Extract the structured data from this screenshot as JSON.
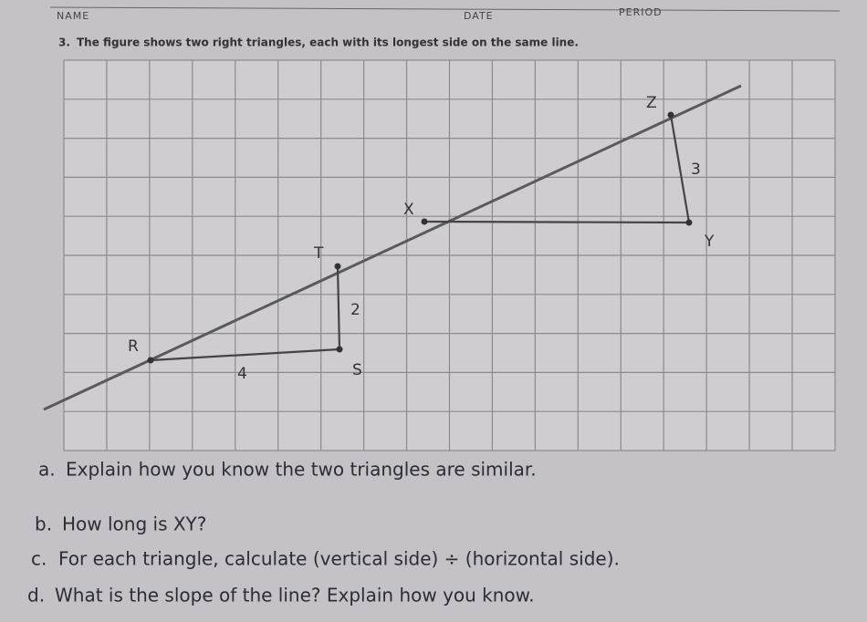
{
  "header": {
    "name": "NAME",
    "date": "DATE",
    "period": "PERIOD"
  },
  "problem": {
    "number": "3.",
    "text": "The figure shows two right triangles, each with its longest side on the same line."
  },
  "figure": {
    "labels": {
      "Z": "Z",
      "side_ZY": 3,
      "X": "X",
      "Y": "Y",
      "T": "T",
      "side_TS": 2,
      "R": "R",
      "side_RS": 4,
      "S": "S"
    }
  },
  "questions": [
    {
      "marker": "a.",
      "text": "Explain how you know the two triangles are similar."
    },
    {
      "marker": "b.",
      "text": "How long is XY?"
    },
    {
      "marker": "c.",
      "text": "For each triangle, calculate (vertical side) ÷ (horizontal side)."
    },
    {
      "marker": "d.",
      "text": "What is the slope of the line? Explain how you know."
    }
  ]
}
